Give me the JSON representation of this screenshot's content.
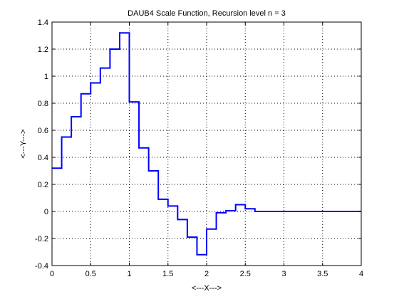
{
  "chart_data": {
    "type": "line",
    "title": "DAUB4 Scale Function, Recursion level n = 3",
    "xlabel": "<---X--->",
    "ylabel": "<---Y--->",
    "xlim": [
      0,
      4
    ],
    "ylim": [
      -0.4,
      1.4
    ],
    "xticks": [
      0,
      0.5,
      1,
      1.5,
      2,
      2.5,
      3,
      3.5,
      4
    ],
    "yticks": [
      -0.4,
      -0.2,
      0,
      0.2,
      0.4,
      0.6,
      0.8,
      1,
      1.2,
      1.4
    ],
    "xtick_labels": [
      "0",
      "0.5",
      "1",
      "1.5",
      "2",
      "2.5",
      "3",
      "3.5",
      "4"
    ],
    "ytick_labels": [
      "-0.4",
      "-0.2",
      "0",
      "0.2",
      "0.4",
      "0.6",
      "0.8",
      "1",
      "1.2",
      "1.4"
    ],
    "grid": true,
    "line_color": "#0000ff",
    "series": [
      {
        "name": "DAUB4 scale function",
        "step": 0.125,
        "values": [
          0.32,
          0.55,
          0.7,
          0.87,
          0.95,
          1.06,
          1.2,
          1.32,
          0.81,
          0.47,
          0.3,
          0.09,
          0.04,
          -0.06,
          -0.19,
          -0.32,
          -0.13,
          -0.01,
          0.005,
          0.05,
          0.02,
          0.0,
          0.0,
          0.0,
          0.0,
          0.0,
          0.0,
          0.0,
          0.0,
          0.0,
          0.0,
          0.0
        ]
      }
    ]
  }
}
